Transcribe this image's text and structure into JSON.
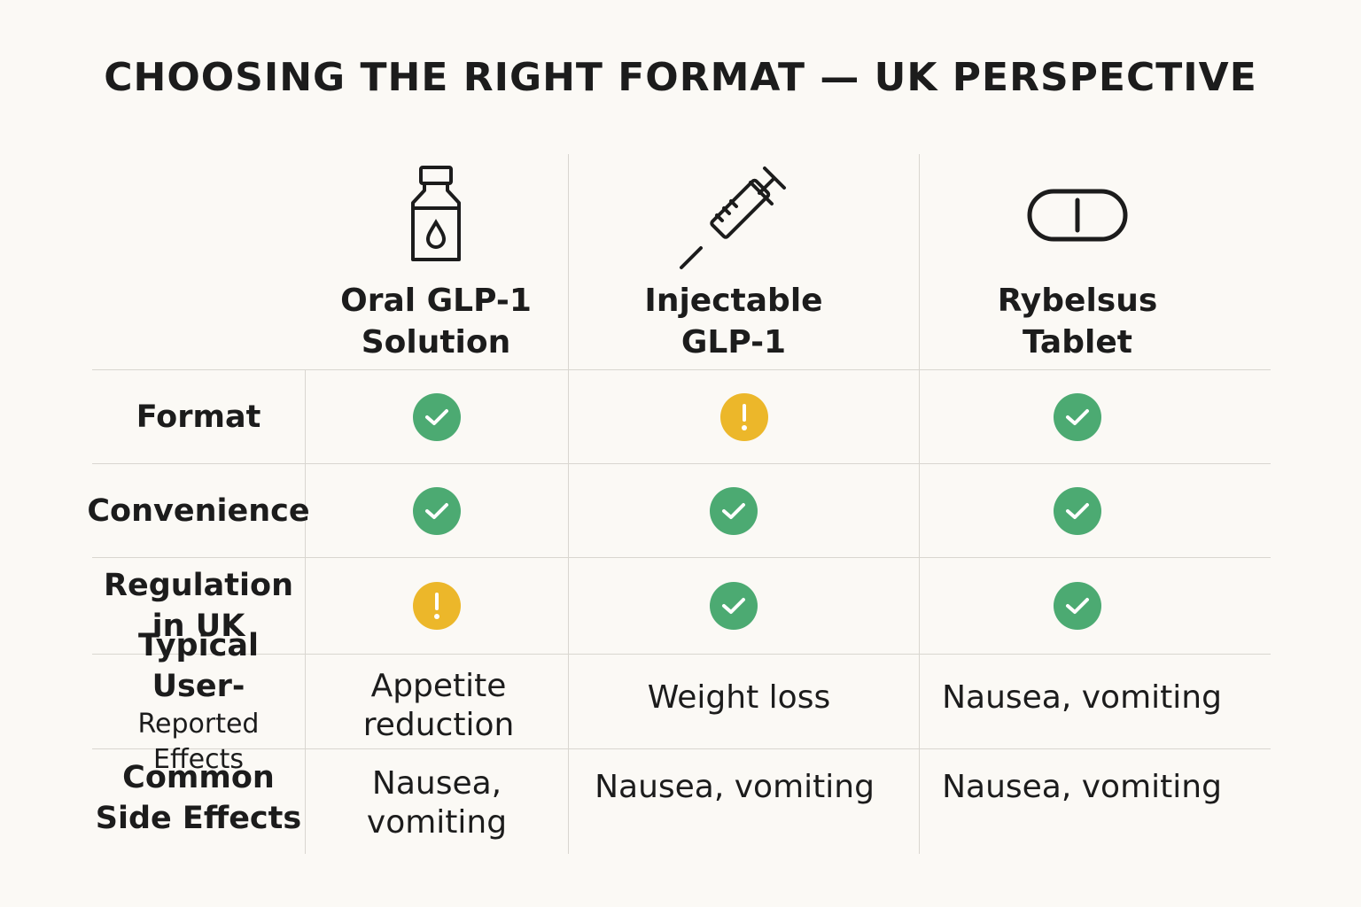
{
  "title": "CHOOSING THE RIGHT FORMAT — UK PERSPECTIVE",
  "colors": {
    "ok": "#4caa72",
    "warn": "#ecb72a",
    "line": "#d9d6d0",
    "background": "#fbf9f5"
  },
  "columns": [
    {
      "label": "Oral GLP-1\nSolution",
      "icon": "bottle-drop-icon"
    },
    {
      "label": "Injectable\nGLP-1",
      "icon": "syringe-icon"
    },
    {
      "label": "Rybelsus\nTablet",
      "icon": "tablet-icon"
    }
  ],
  "rows": [
    {
      "label": "Format",
      "sub": "",
      "cells": [
        {
          "status": "ok"
        },
        {
          "status": "warn"
        },
        {
          "status": "ok"
        }
      ]
    },
    {
      "label": "Convenience",
      "sub": "",
      "cells": [
        {
          "status": "ok"
        },
        {
          "status": "ok"
        },
        {
          "status": "ok"
        }
      ]
    },
    {
      "label": "Regulation\nin UK",
      "sub": "",
      "cells": [
        {
          "status": "warn"
        },
        {
          "status": "ok"
        },
        {
          "status": "ok"
        }
      ]
    },
    {
      "label": "Typical User-",
      "sub": "Reported Effects",
      "cells": [
        {
          "text": "Appetite\nreduction"
        },
        {
          "text": "Weight loss"
        },
        {
          "text": "Nausea, vomiting"
        }
      ]
    },
    {
      "label": "Common\nSide Effects",
      "sub": "",
      "cells": [
        {
          "text": "Nausea,\nvomiting"
        },
        {
          "text": "Nausea, vomiting"
        },
        {
          "text": "Nausea, vomiting"
        }
      ]
    }
  ]
}
